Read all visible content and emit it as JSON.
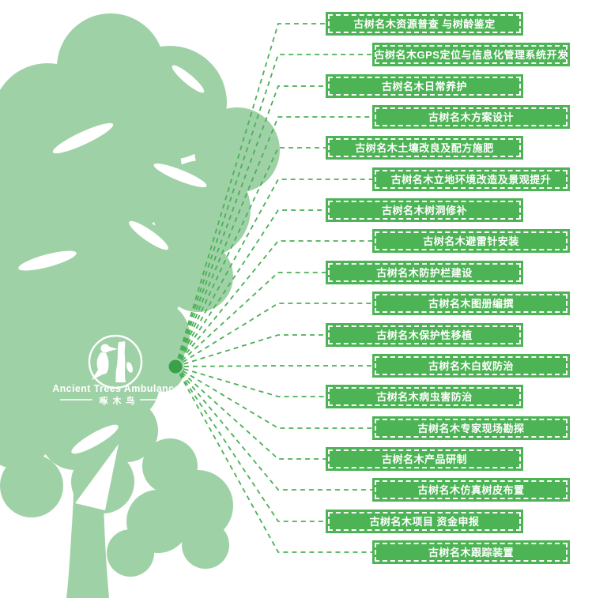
{
  "logo": {
    "title": "Ancient Trees Ambulance",
    "subtitle": "啄木鸟",
    "emblem": "woodpecker-on-tree-trunk"
  },
  "services": {
    "items": [
      {
        "label": "古树名木资源普查 与树龄鉴定"
      },
      {
        "label": "古树名木GPS定位与信息化管理系统开发"
      },
      {
        "label": "古树名木日常养护"
      },
      {
        "label": "古树名木方案设计"
      },
      {
        "label": "古树名木土壤改良及配方施肥"
      },
      {
        "label": "古树名木立地环境改造及景观提升"
      },
      {
        "label": "古树名木树洞修补"
      },
      {
        "label": "古树名木避雷针安装"
      },
      {
        "label": "古树名木防护栏建设"
      },
      {
        "label": "古树名木图册编撰"
      },
      {
        "label": "古树名木保护性移植"
      },
      {
        "label": "古树名木白蚁防治"
      },
      {
        "label": "古树名木病虫害防治"
      },
      {
        "label": "古树名木专家现场勘探"
      },
      {
        "label": "古树名木产品研制"
      },
      {
        "label": "古树名木仿真树皮布置"
      },
      {
        "label": "古树名木项目 资金申报"
      },
      {
        "label": "古树名木跟踪装置"
      }
    ]
  },
  "colors": {
    "box_green": "#4cb454",
    "tree_green": "#9fd1a6",
    "line_green": "#4bb056",
    "dot_green": "#3ba04a",
    "text_white": "#ffffff"
  }
}
